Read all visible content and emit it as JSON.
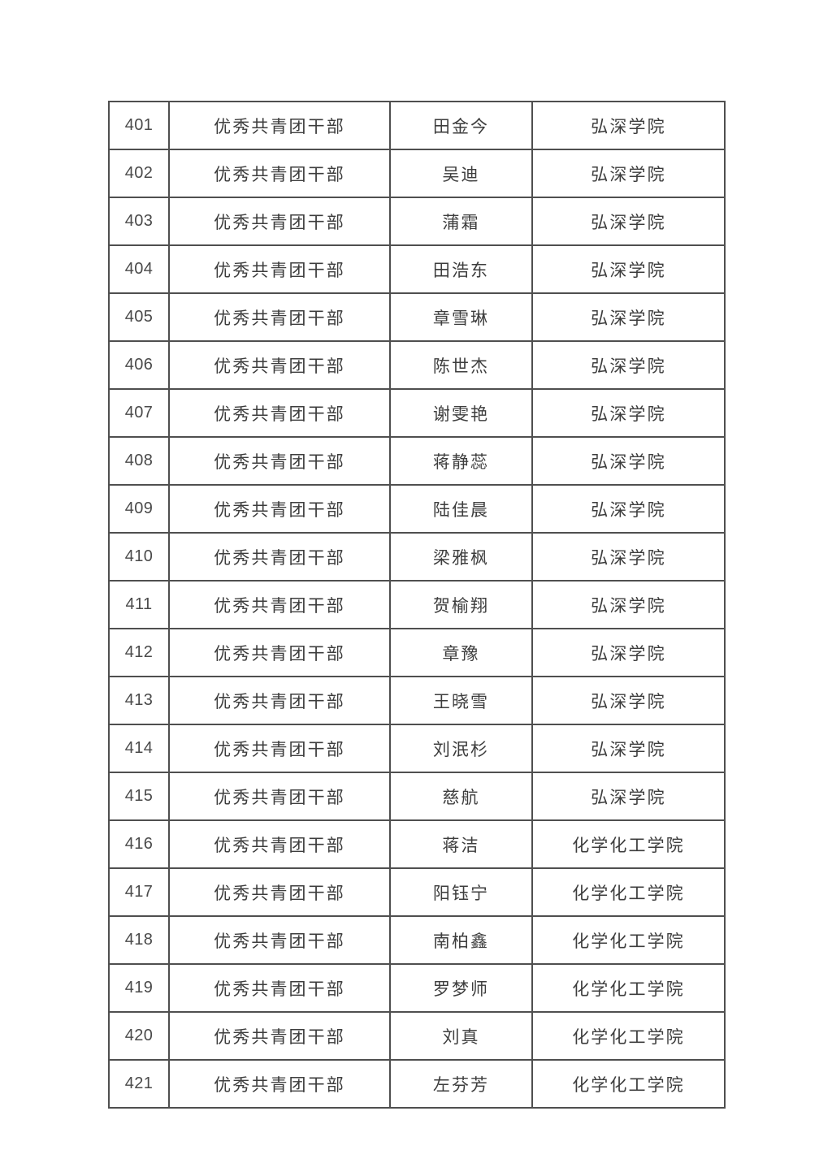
{
  "page": {
    "background_color": "#ffffff",
    "text_color": "#3d3d3d",
    "border_color": "#4f4f4f"
  },
  "table": {
    "columns": [
      "number",
      "award_title",
      "name",
      "college"
    ],
    "rows": [
      {
        "no": "401",
        "award": "优秀共青团干部",
        "name": "田金今",
        "college": "弘深学院"
      },
      {
        "no": "402",
        "award": "优秀共青团干部",
        "name": "吴迪",
        "college": "弘深学院"
      },
      {
        "no": "403",
        "award": "优秀共青团干部",
        "name": "蒲霜",
        "college": "弘深学院"
      },
      {
        "no": "404",
        "award": "优秀共青团干部",
        "name": "田浩东",
        "college": "弘深学院"
      },
      {
        "no": "405",
        "award": "优秀共青团干部",
        "name": "章雪琳",
        "college": "弘深学院"
      },
      {
        "no": "406",
        "award": "优秀共青团干部",
        "name": "陈世杰",
        "college": "弘深学院"
      },
      {
        "no": "407",
        "award": "优秀共青团干部",
        "name": "谢雯艳",
        "college": "弘深学院"
      },
      {
        "no": "408",
        "award": "优秀共青团干部",
        "name": "蒋静蕊",
        "college": "弘深学院"
      },
      {
        "no": "409",
        "award": "优秀共青团干部",
        "name": "陆佳晨",
        "college": "弘深学院"
      },
      {
        "no": "410",
        "award": "优秀共青团干部",
        "name": "梁雅枫",
        "college": "弘深学院"
      },
      {
        "no": "411",
        "award": "优秀共青团干部",
        "name": "贺榆翔",
        "college": "弘深学院"
      },
      {
        "no": "412",
        "award": "优秀共青团干部",
        "name": "章豫",
        "college": "弘深学院"
      },
      {
        "no": "413",
        "award": "优秀共青团干部",
        "name": "王晓雪",
        "college": "弘深学院"
      },
      {
        "no": "414",
        "award": "优秀共青团干部",
        "name": "刘泯杉",
        "college": "弘深学院"
      },
      {
        "no": "415",
        "award": "优秀共青团干部",
        "name": "慈航",
        "college": "弘深学院"
      },
      {
        "no": "416",
        "award": "优秀共青团干部",
        "name": "蒋洁",
        "college": "化学化工学院"
      },
      {
        "no": "417",
        "award": "优秀共青团干部",
        "name": "阳钰宁",
        "college": "化学化工学院"
      },
      {
        "no": "418",
        "award": "优秀共青团干部",
        "name": "南柏鑫",
        "college": "化学化工学院"
      },
      {
        "no": "419",
        "award": "优秀共青团干部",
        "name": "罗梦师",
        "college": "化学化工学院"
      },
      {
        "no": "420",
        "award": "优秀共青团干部",
        "name": "刘真",
        "college": "化学化工学院"
      },
      {
        "no": "421",
        "award": "优秀共青团干部",
        "name": "左芬芳",
        "college": "化学化工学院"
      }
    ]
  }
}
